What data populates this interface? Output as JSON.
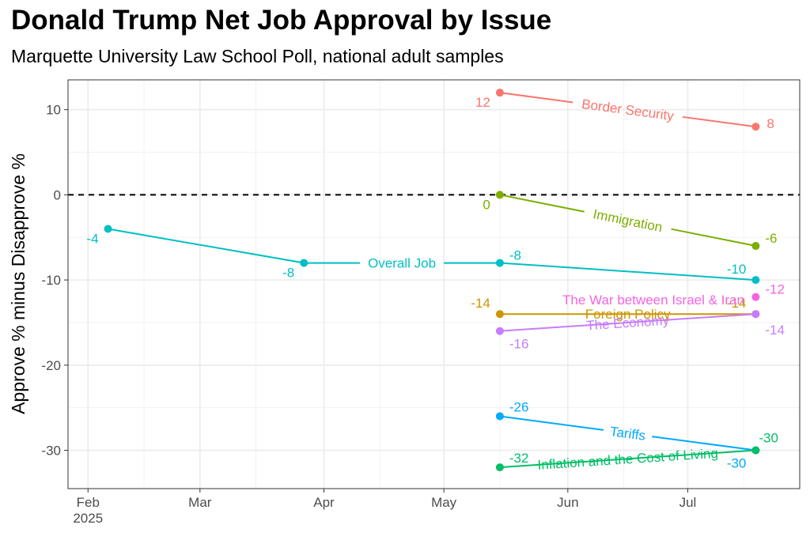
{
  "chart_data": {
    "type": "line",
    "title": "Donald Trump Net Job Approval by Issue",
    "subtitle": "Marquette University Law School Poll, national adult samples",
    "xlabel": "",
    "ylabel": "Approve % minus Disapprove %",
    "x_ticks": [
      "Feb\n2025",
      "Mar",
      "Apr",
      "May",
      "Jun",
      "Jul"
    ],
    "y_ticks": [
      10,
      0,
      -10,
      -20,
      -30
    ],
    "ylim": [
      -34.5,
      13.5
    ],
    "xlim": [
      "2025-01-27",
      "2025-07-29"
    ],
    "grid": true,
    "reference_line": 0,
    "series": [
      {
        "name": "Border Security",
        "color": "#F8766D",
        "points": [
          {
            "x": "2025-05-15",
            "y": 12
          },
          {
            "x": "2025-07-18",
            "y": 8
          }
        ]
      },
      {
        "name": "Immigration",
        "color": "#7CAE00",
        "points": [
          {
            "x": "2025-05-15",
            "y": 0
          },
          {
            "x": "2025-07-18",
            "y": -6
          }
        ]
      },
      {
        "name": "Overall Job",
        "color": "#00BFC4",
        "points": [
          {
            "x": "2025-02-06",
            "y": -4
          },
          {
            "x": "2025-03-27",
            "y": -8
          },
          {
            "x": "2025-05-15",
            "y": -8
          },
          {
            "x": "2025-07-18",
            "y": -10
          }
        ]
      },
      {
        "name": "The War between Israel & Iran",
        "color": "#F564E3",
        "points": [
          {
            "x": "2025-07-18",
            "y": -12
          }
        ]
      },
      {
        "name": "Foreign Policy",
        "color": "#CD9600",
        "points": [
          {
            "x": "2025-05-15",
            "y": -14
          },
          {
            "x": "2025-07-18",
            "y": -14
          }
        ]
      },
      {
        "name": "The Economy",
        "color": "#C77CFF",
        "points": [
          {
            "x": "2025-05-15",
            "y": -16
          },
          {
            "x": "2025-07-18",
            "y": -14
          }
        ]
      },
      {
        "name": "Tariffs",
        "color": "#00A9FF",
        "points": [
          {
            "x": "2025-05-15",
            "y": -26
          },
          {
            "x": "2025-07-18",
            "y": -30
          }
        ]
      },
      {
        "name": "Inflation and the Cost of Living",
        "color": "#00BE67",
        "points": [
          {
            "x": "2025-05-15",
            "y": -32
          },
          {
            "x": "2025-07-18",
            "y": -30
          }
        ]
      }
    ]
  }
}
